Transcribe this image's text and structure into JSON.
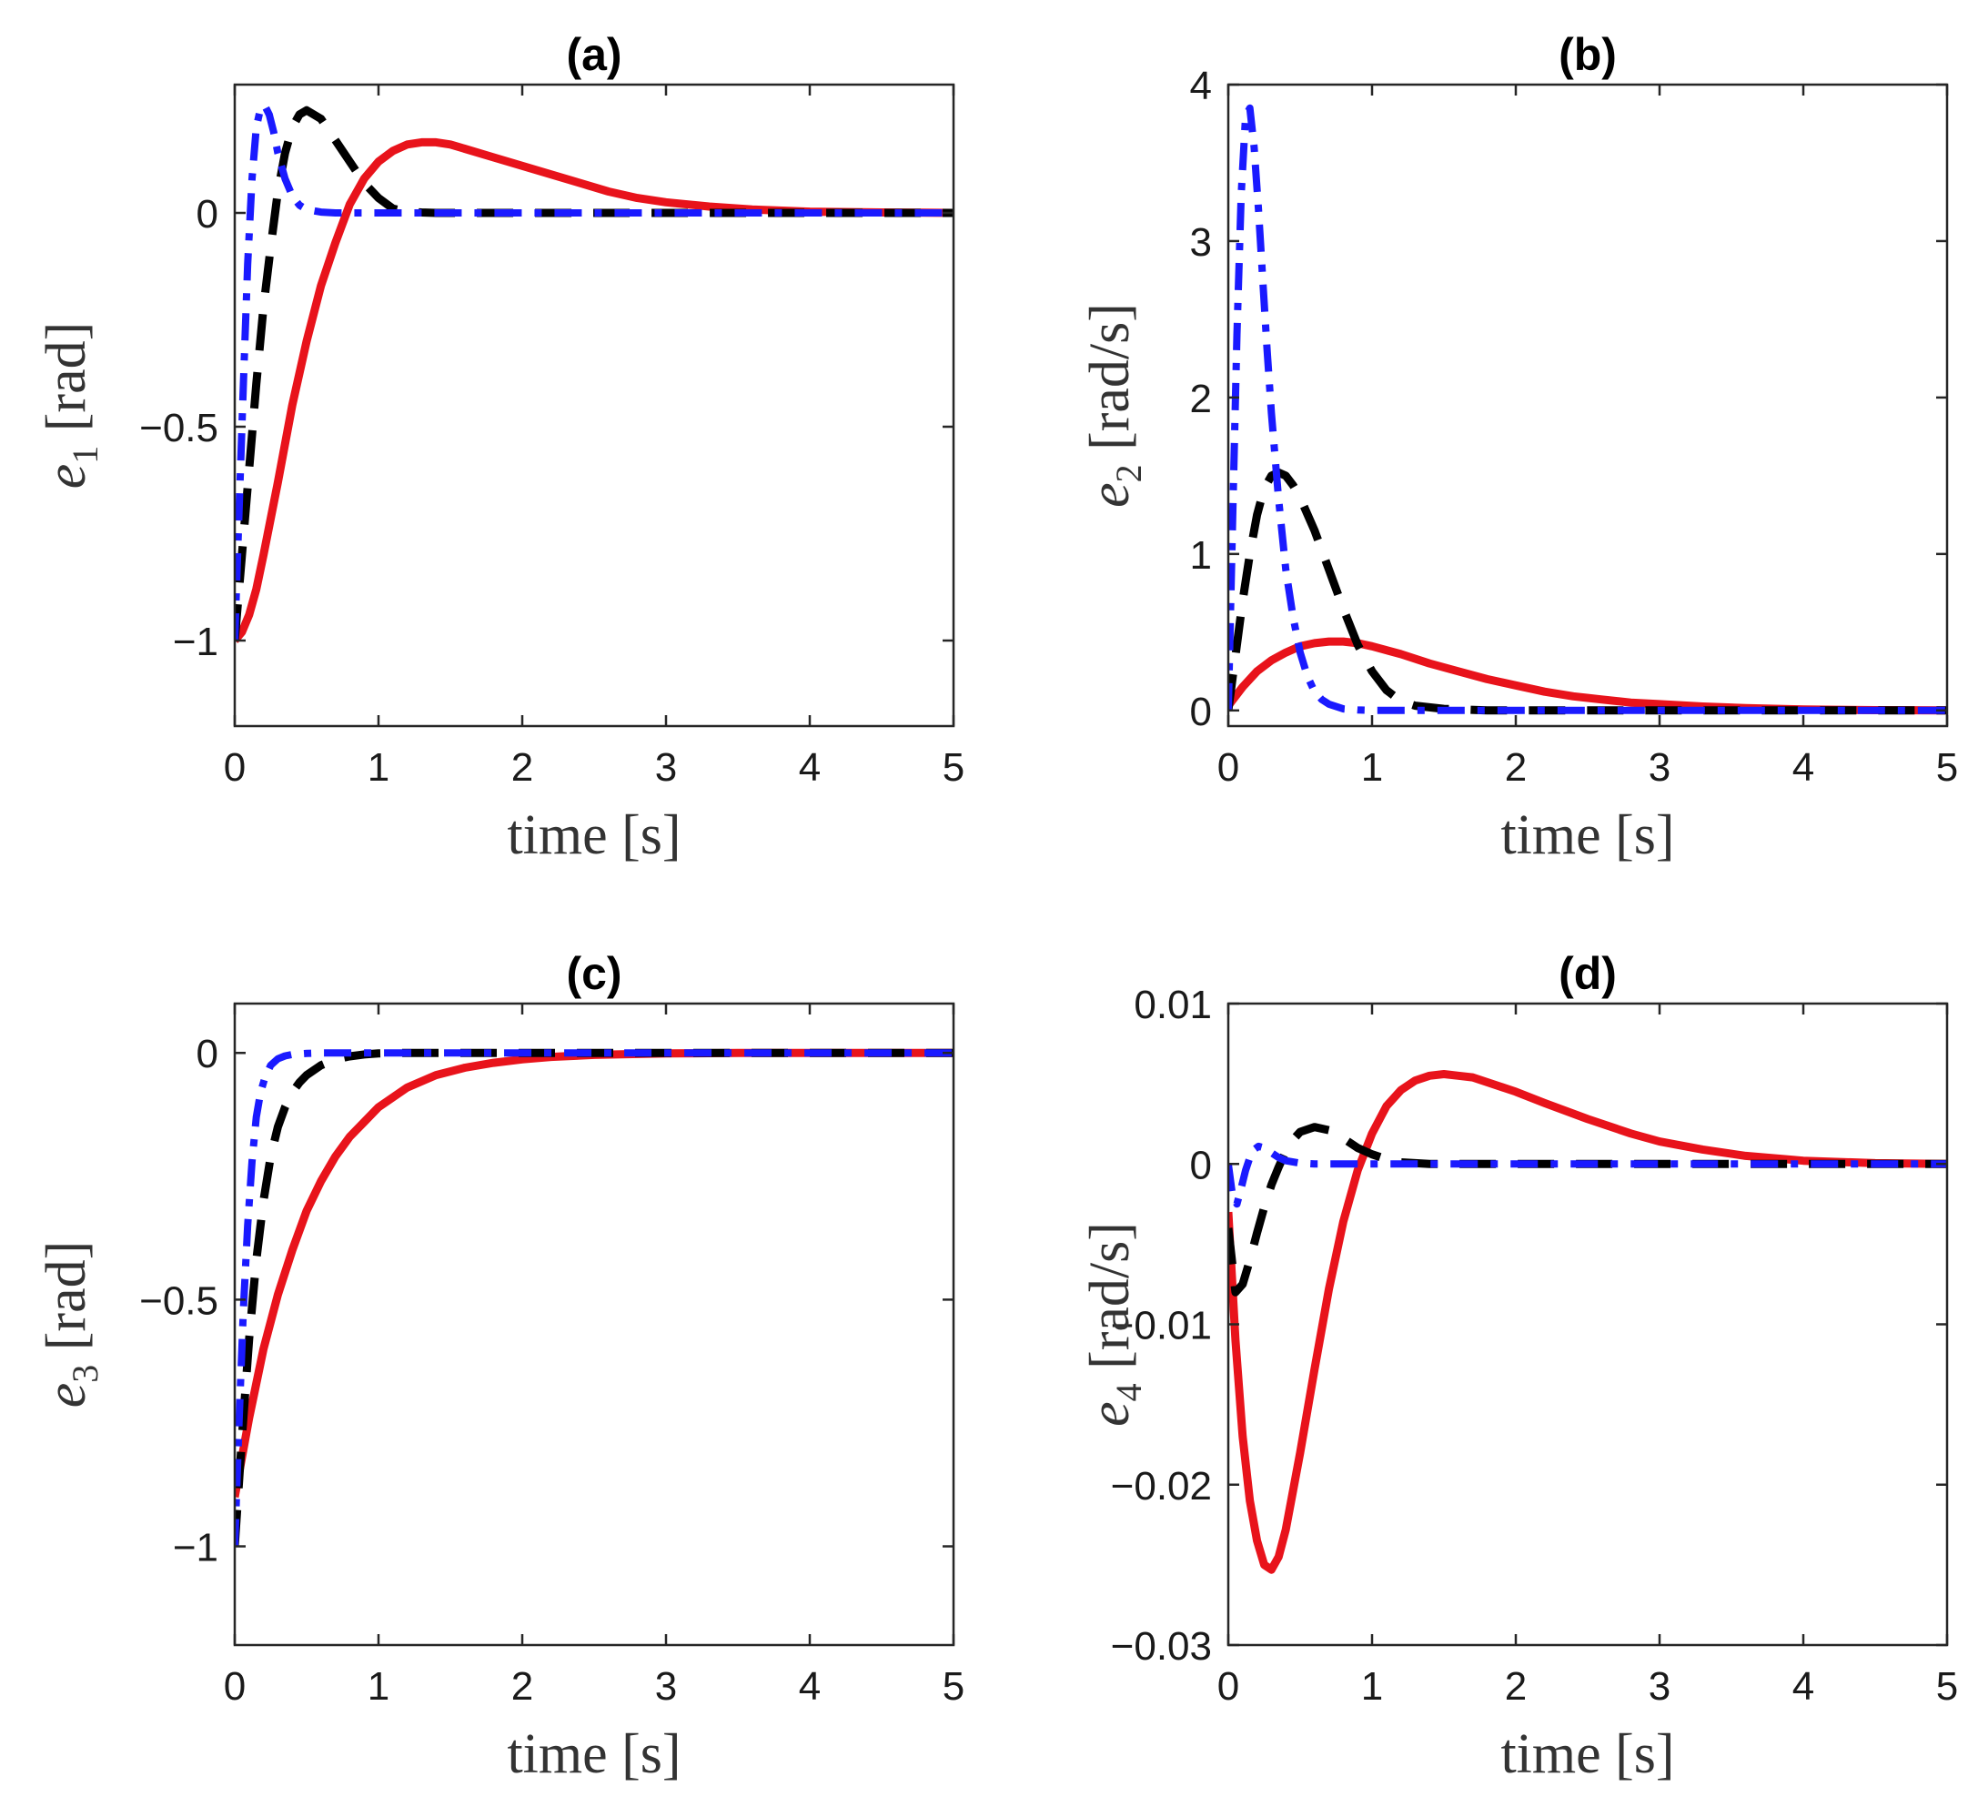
{
  "chart_data": [
    {
      "type": "line",
      "title": "(a)",
      "xlabel": "time [s]",
      "ylabel_var": "e",
      "ylabel_sub": "1",
      "ylabel_unit": " [rad]",
      "xlim": [
        0,
        5
      ],
      "ylim": [
        -1.2,
        0.3
      ],
      "xticks": [
        0,
        1,
        2,
        3,
        4,
        5
      ],
      "yticks": [
        -1,
        -0.5,
        0
      ],
      "ytick_labels": [
        "−1",
        "−0.5",
        "0"
      ],
      "xtick_labels": [
        "0",
        "1",
        "2",
        "3",
        "4",
        "5"
      ],
      "series": [
        {
          "name": "red-solid",
          "color": "#e8131b",
          "style": "solid",
          "x": [
            0,
            0.05,
            0.1,
            0.15,
            0.2,
            0.3,
            0.4,
            0.5,
            0.6,
            0.7,
            0.8,
            0.9,
            1.0,
            1.1,
            1.2,
            1.3,
            1.4,
            1.5,
            1.6,
            1.8,
            2.0,
            2.2,
            2.4,
            2.6,
            2.8,
            3.0,
            3.3,
            3.6,
            4.0,
            4.5,
            5.0
          ],
          "y": [
            -1,
            -0.98,
            -0.94,
            -0.88,
            -0.8,
            -0.63,
            -0.45,
            -0.3,
            -0.17,
            -0.07,
            0.02,
            0.08,
            0.12,
            0.145,
            0.16,
            0.165,
            0.165,
            0.16,
            0.15,
            0.13,
            0.11,
            0.09,
            0.07,
            0.05,
            0.035,
            0.025,
            0.015,
            0.008,
            0.003,
            0.001,
            0
          ]
        },
        {
          "name": "black-dashed",
          "color": "#000000",
          "style": "dashed",
          "x": [
            0,
            0.05,
            0.1,
            0.15,
            0.2,
            0.25,
            0.3,
            0.35,
            0.4,
            0.45,
            0.5,
            0.6,
            0.7,
            0.8,
            0.9,
            1.0,
            1.1,
            1.2,
            1.3,
            1.4,
            1.6,
            1.8,
            2.0,
            2.5,
            3.0,
            4.0,
            5.0
          ],
          "y": [
            -1,
            -0.8,
            -0.6,
            -0.4,
            -0.22,
            -0.08,
            0.05,
            0.14,
            0.2,
            0.23,
            0.24,
            0.22,
            0.17,
            0.12,
            0.07,
            0.035,
            0.01,
            0.003,
            0.001,
            0,
            0,
            0,
            0,
            0,
            0,
            0,
            0
          ]
        },
        {
          "name": "blue-dashdot",
          "color": "#1a1aff",
          "style": "dashdot",
          "x": [
            0,
            0.03,
            0.06,
            0.09,
            0.12,
            0.15,
            0.18,
            0.21,
            0.24,
            0.27,
            0.3,
            0.35,
            0.4,
            0.45,
            0.5,
            0.6,
            0.7,
            0.8,
            1.0,
            2.0,
            3.0,
            4.0,
            5.0
          ],
          "y": [
            -1,
            -0.7,
            -0.4,
            -0.12,
            0.08,
            0.2,
            0.245,
            0.25,
            0.23,
            0.19,
            0.14,
            0.08,
            0.04,
            0.018,
            0.008,
            0.002,
            0,
            0,
            0,
            0,
            0,
            0,
            0
          ]
        }
      ]
    },
    {
      "type": "line",
      "title": "(b)",
      "xlabel": "time [s]",
      "ylabel_var": "e",
      "ylabel_sub": "2",
      "ylabel_unit": " [rad/s]",
      "xlim": [
        0,
        5
      ],
      "ylim": [
        -0.1,
        4
      ],
      "xticks": [
        0,
        1,
        2,
        3,
        4,
        5
      ],
      "yticks": [
        0,
        1,
        2,
        3,
        4
      ],
      "ytick_labels": [
        "0",
        "1",
        "2",
        "3",
        "4"
      ],
      "xtick_labels": [
        "0",
        "1",
        "2",
        "3",
        "4",
        "5"
      ],
      "series": [
        {
          "name": "red-solid",
          "color": "#e8131b",
          "style": "solid",
          "x": [
            0,
            0.1,
            0.2,
            0.3,
            0.4,
            0.5,
            0.6,
            0.7,
            0.8,
            0.9,
            1.0,
            1.2,
            1.4,
            1.6,
            1.8,
            2.0,
            2.2,
            2.4,
            2.6,
            2.8,
            3.0,
            3.3,
            3.6,
            4.0,
            4.5,
            5.0
          ],
          "y": [
            0.03,
            0.15,
            0.25,
            0.32,
            0.37,
            0.41,
            0.43,
            0.44,
            0.44,
            0.43,
            0.41,
            0.36,
            0.3,
            0.25,
            0.2,
            0.16,
            0.12,
            0.09,
            0.07,
            0.05,
            0.04,
            0.025,
            0.015,
            0.006,
            0.002,
            0
          ]
        },
        {
          "name": "black-dashed",
          "color": "#000000",
          "style": "dashed",
          "x": [
            0,
            0.05,
            0.1,
            0.15,
            0.2,
            0.25,
            0.3,
            0.35,
            0.4,
            0.45,
            0.5,
            0.6,
            0.7,
            0.8,
            0.9,
            1.0,
            1.1,
            1.2,
            1.3,
            1.5,
            1.8,
            2.0,
            3.0,
            4.0,
            5.0
          ],
          "y": [
            0,
            0.35,
            0.7,
            1.0,
            1.25,
            1.42,
            1.5,
            1.52,
            1.5,
            1.44,
            1.36,
            1.15,
            0.9,
            0.65,
            0.42,
            0.25,
            0.13,
            0.06,
            0.03,
            0.01,
            0,
            0,
            0,
            0,
            0
          ]
        },
        {
          "name": "blue-dashdot",
          "color": "#1a1aff",
          "style": "dashdot",
          "x": [
            0,
            0.03,
            0.06,
            0.09,
            0.12,
            0.15,
            0.18,
            0.21,
            0.24,
            0.27,
            0.3,
            0.35,
            0.4,
            0.45,
            0.5,
            0.55,
            0.6,
            0.65,
            0.7,
            0.8,
            0.9,
            1.0,
            2.0,
            3.0,
            4.0,
            5.0
          ],
          "y": [
            0,
            1.2,
            2.4,
            3.3,
            3.8,
            3.85,
            3.6,
            3.2,
            2.75,
            2.3,
            1.9,
            1.35,
            0.9,
            0.6,
            0.37,
            0.22,
            0.12,
            0.07,
            0.04,
            0.01,
            0.003,
            0,
            0,
            0,
            0,
            0
          ]
        }
      ]
    },
    {
      "type": "line",
      "title": "(c)",
      "xlabel": "time [s]",
      "ylabel_var": "e",
      "ylabel_sub": "3",
      "ylabel_unit": " [rad]",
      "xlim": [
        0,
        5
      ],
      "ylim": [
        -1.2,
        0.1
      ],
      "xticks": [
        0,
        1,
        2,
        3,
        4,
        5
      ],
      "yticks": [
        -1,
        -0.5,
        0
      ],
      "ytick_labels": [
        "−1",
        "−0.5",
        "0"
      ],
      "xtick_labels": [
        "0",
        "1",
        "2",
        "3",
        "4",
        "5"
      ],
      "series": [
        {
          "name": "red-solid",
          "color": "#e8131b",
          "style": "solid",
          "x": [
            0,
            0.05,
            0.1,
            0.15,
            0.2,
            0.3,
            0.4,
            0.5,
            0.6,
            0.7,
            0.8,
            0.9,
            1.0,
            1.2,
            1.4,
            1.6,
            1.8,
            2.0,
            2.2,
            2.5,
            3.0,
            3.5,
            4.0,
            5.0
          ],
          "y": [
            -0.9,
            -0.82,
            -0.74,
            -0.67,
            -0.6,
            -0.49,
            -0.4,
            -0.32,
            -0.26,
            -0.21,
            -0.17,
            -0.14,
            -0.11,
            -0.07,
            -0.045,
            -0.03,
            -0.02,
            -0.013,
            -0.008,
            -0.004,
            -0.001,
            0,
            0,
            0
          ]
        },
        {
          "name": "black-dashed",
          "color": "#000000",
          "style": "dashed",
          "x": [
            0,
            0.05,
            0.1,
            0.15,
            0.2,
            0.25,
            0.3,
            0.35,
            0.4,
            0.45,
            0.5,
            0.6,
            0.7,
            0.8,
            0.9,
            1.0,
            1.2,
            1.5,
            2.0,
            3.0,
            4.0,
            5.0
          ],
          "y": [
            -1,
            -0.78,
            -0.58,
            -0.42,
            -0.3,
            -0.21,
            -0.15,
            -0.11,
            -0.08,
            -0.06,
            -0.045,
            -0.025,
            -0.013,
            -0.007,
            -0.003,
            -0.001,
            0,
            0,
            0,
            0,
            0,
            0
          ]
        },
        {
          "name": "blue-dashdot",
          "color": "#1a1aff",
          "style": "dashdot",
          "x": [
            0,
            0.03,
            0.06,
            0.09,
            0.12,
            0.15,
            0.18,
            0.21,
            0.25,
            0.3,
            0.35,
            0.4,
            0.5,
            0.6,
            0.8,
            1.0,
            2.0,
            3.0,
            4.0,
            5.0
          ],
          "y": [
            -1,
            -0.75,
            -0.52,
            -0.35,
            -0.22,
            -0.13,
            -0.08,
            -0.05,
            -0.025,
            -0.012,
            -0.006,
            -0.003,
            -0.001,
            0,
            0,
            0,
            0,
            0,
            0,
            0
          ]
        }
      ]
    },
    {
      "type": "line",
      "title": "(d)",
      "xlabel": "time [s]",
      "ylabel_var": "e",
      "ylabel_sub": "4",
      "ylabel_unit": " [rad/s]",
      "xlim": [
        0,
        5
      ],
      "ylim": [
        -0.03,
        0.01
      ],
      "xticks": [
        0,
        1,
        2,
        3,
        4,
        5
      ],
      "yticks": [
        -0.03,
        -0.02,
        -0.01,
        0,
        0.01
      ],
      "ytick_labels": [
        "−0.03",
        "−0.02",
        "−0.01",
        "0",
        "0.01"
      ],
      "xtick_labels": [
        "0",
        "1",
        "2",
        "3",
        "4",
        "5"
      ],
      "series": [
        {
          "name": "red-solid",
          "color": "#e8131b",
          "style": "solid",
          "x": [
            0,
            0.05,
            0.1,
            0.15,
            0.2,
            0.25,
            0.3,
            0.35,
            0.4,
            0.5,
            0.6,
            0.7,
            0.8,
            0.9,
            1.0,
            1.1,
            1.2,
            1.3,
            1.4,
            1.5,
            1.6,
            1.7,
            1.8,
            2.0,
            2.2,
            2.5,
            2.8,
            3.0,
            3.3,
            3.6,
            4.0,
            4.5,
            5.0
          ],
          "y": [
            -0.003,
            -0.011,
            -0.017,
            -0.021,
            -0.0235,
            -0.025,
            -0.0253,
            -0.0245,
            -0.0228,
            -0.018,
            -0.0128,
            -0.0078,
            -0.0036,
            -0.0004,
            0.0019,
            0.0036,
            0.0046,
            0.0052,
            0.0055,
            0.0056,
            0.0055,
            0.0054,
            0.0051,
            0.0045,
            0.0038,
            0.0028,
            0.0019,
            0.0014,
            0.0009,
            0.0005,
            0.0002,
            5e-05,
            0
          ]
        },
        {
          "name": "black-dashed",
          "color": "#000000",
          "style": "dashed",
          "x": [
            0,
            0.05,
            0.1,
            0.15,
            0.2,
            0.25,
            0.3,
            0.35,
            0.4,
            0.45,
            0.5,
            0.6,
            0.7,
            0.8,
            0.9,
            1.0,
            1.1,
            1.2,
            1.4,
            1.6,
            2.0,
            3.0,
            4.0,
            5.0
          ],
          "y": [
            -0.004,
            -0.008,
            -0.0075,
            -0.006,
            -0.0043,
            -0.0027,
            -0.0013,
            -0.0002,
            0.0008,
            0.0015,
            0.002,
            0.0023,
            0.0021,
            0.0016,
            0.001,
            0.0006,
            0.0003,
            0.0001,
            0,
            0,
            0,
            0,
            0,
            0
          ]
        },
        {
          "name": "blue-dashdot",
          "color": "#1a1aff",
          "style": "dashdot",
          "x": [
            0,
            0.03,
            0.06,
            0.09,
            0.12,
            0.15,
            0.18,
            0.21,
            0.25,
            0.3,
            0.35,
            0.4,
            0.5,
            0.6,
            0.8,
            1.0,
            2.0,
            3.0,
            4.0,
            5.0
          ],
          "y": [
            0,
            -0.002,
            -0.0025,
            -0.0015,
            -0.0004,
            0.0004,
            0.0009,
            0.0011,
            0.001,
            0.0007,
            0.0004,
            0.0002,
            5e-05,
            0,
            0,
            0,
            0,
            0,
            0,
            0
          ]
        }
      ]
    }
  ]
}
